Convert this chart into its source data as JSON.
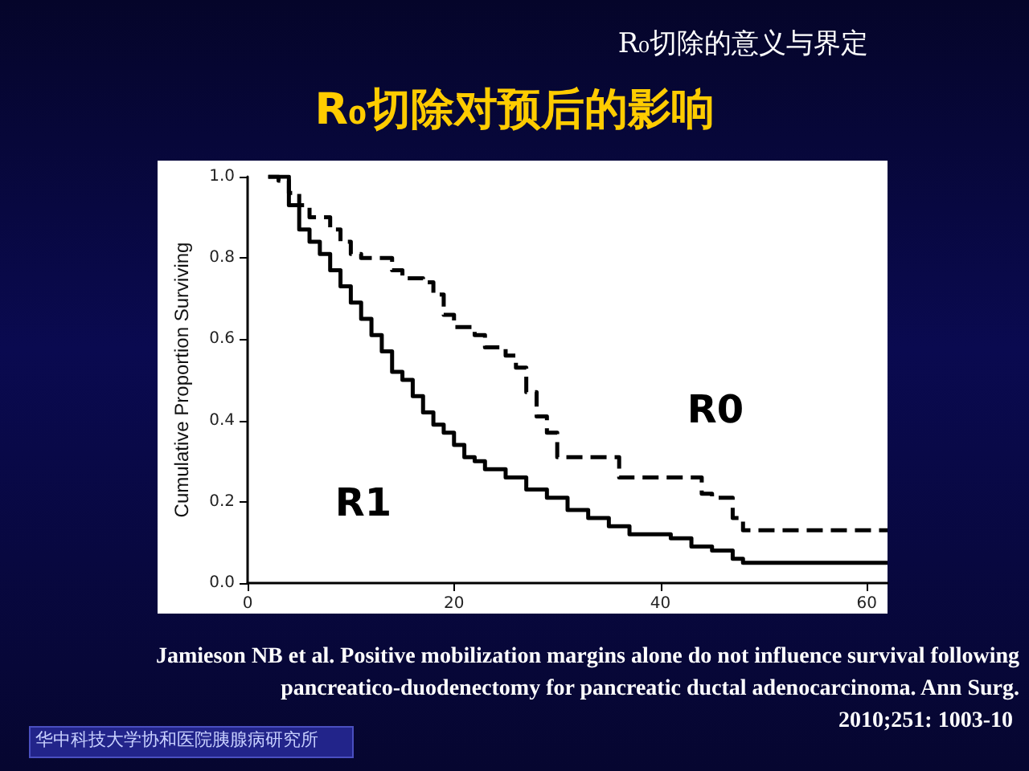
{
  "chart_data": {
    "type": "step",
    "title": "R₀切除对预后的影响",
    "subtitle": "R₀切除的意义与界定",
    "ylabel": "Cumulative Proportion Surviving",
    "xlim": [
      0,
      62
    ],
    "xticks": [
      0,
      20,
      40,
      60
    ],
    "ylim": [
      0,
      1
    ],
    "yticks": [
      {
        "value": 0,
        "label": "0.0"
      },
      {
        "value": 0.2,
        "label": "0.2"
      },
      {
        "value": 0.4,
        "label": "0.4"
      },
      {
        "value": 0.6,
        "label": "0.6"
      },
      {
        "value": 0.8,
        "label": "0.8"
      },
      {
        "value": 1,
        "label": "1.0"
      }
    ],
    "grid": false,
    "marker": "none",
    "series": [
      {
        "name": "R1",
        "color": "#000000",
        "line_style": "solid",
        "x": [
          2,
          4,
          5,
          6,
          7,
          8,
          9,
          10,
          11,
          12,
          13,
          14,
          15,
          16,
          17,
          18,
          19,
          20,
          21,
          22,
          23,
          25,
          27,
          29,
          31,
          33,
          35,
          37,
          41,
          43,
          45,
          47,
          48,
          62
        ],
        "values": [
          1.0,
          0.93,
          0.87,
          0.84,
          0.81,
          0.77,
          0.73,
          0.69,
          0.65,
          0.61,
          0.57,
          0.52,
          0.5,
          0.46,
          0.42,
          0.39,
          0.37,
          0.34,
          0.31,
          0.3,
          0.28,
          0.26,
          0.23,
          0.21,
          0.18,
          0.16,
          0.14,
          0.12,
          0.11,
          0.09,
          0.08,
          0.06,
          0.05,
          0.05
        ]
      },
      {
        "name": "R0",
        "color": "#000000",
        "line_style": "dashed",
        "x": [
          2,
          3,
          4,
          5,
          6,
          8,
          9,
          10,
          11,
          14,
          15,
          17,
          18,
          19,
          20,
          22,
          23,
          25,
          26,
          27,
          28,
          29,
          30,
          36,
          44,
          45,
          47,
          48,
          49,
          62
        ],
        "values": [
          1.0,
          0.99,
          0.96,
          0.93,
          0.9,
          0.87,
          0.84,
          0.81,
          0.8,
          0.77,
          0.75,
          0.74,
          0.71,
          0.66,
          0.63,
          0.61,
          0.58,
          0.56,
          0.53,
          0.47,
          0.41,
          0.37,
          0.31,
          0.26,
          0.22,
          0.21,
          0.16,
          0.13,
          0.13,
          0.13
        ]
      }
    ],
    "annotations": [
      "Jamieson NB et al. Positive mobilization margins alone do not influence survival following",
      "pancreatico-duodenectomy for pancreatic ductal adenocarcinoma. Ann Surg.",
      "2010;251: 1003-10",
      "华中科技大学协和医院胰腺病研究所"
    ]
  }
}
